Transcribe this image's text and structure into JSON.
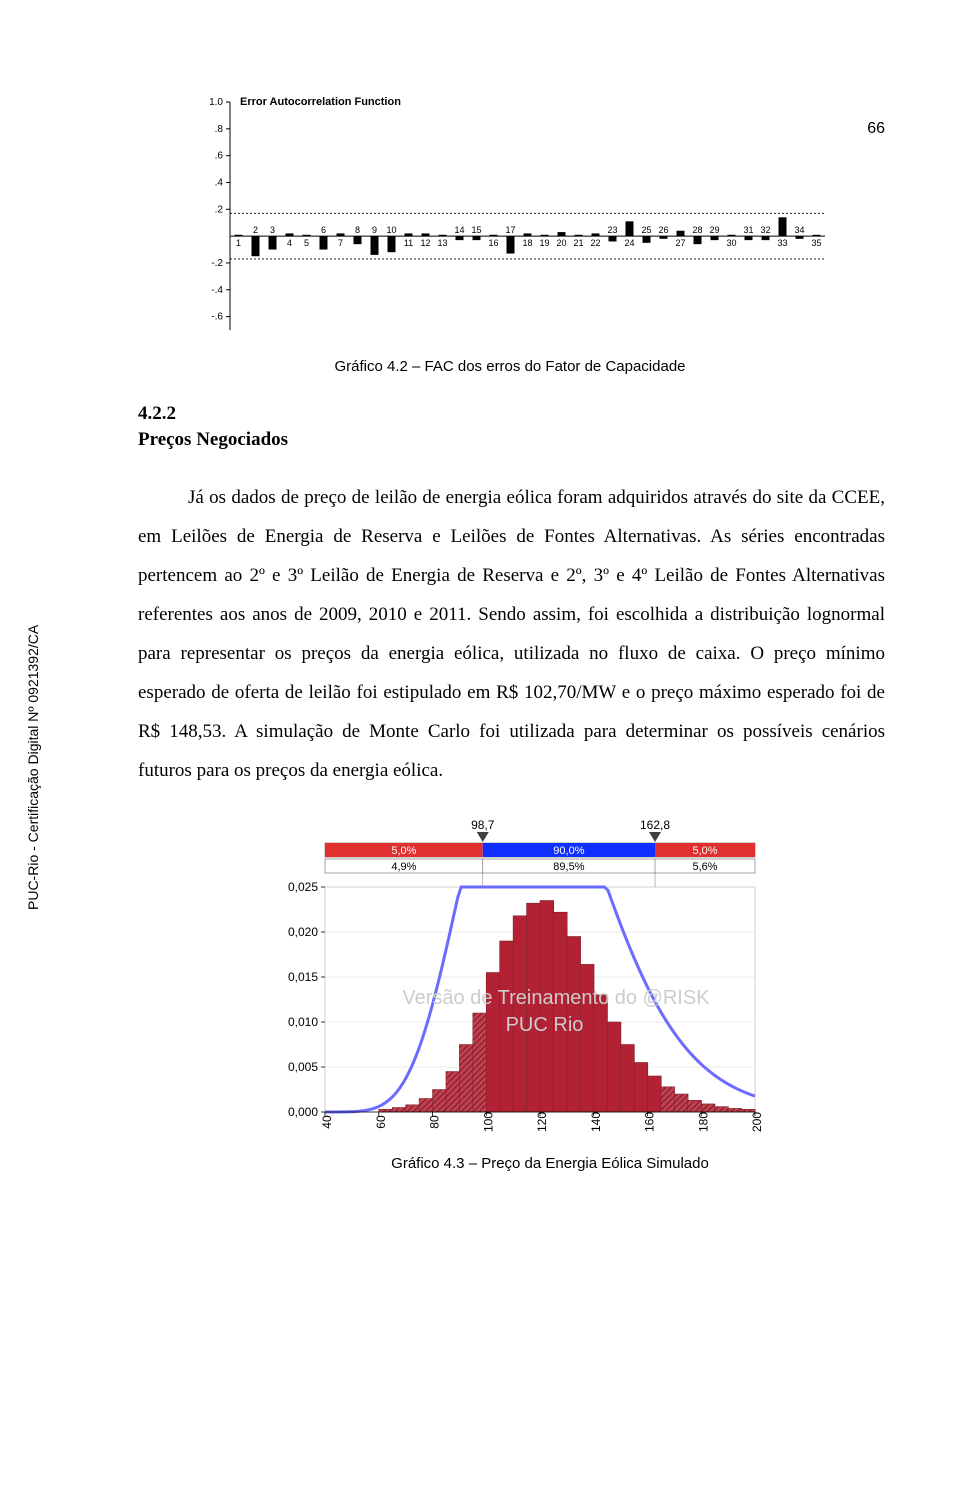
{
  "page_number": "66",
  "sidebar": "PUC-Rio - Certificação Digital Nº 0921392/CA",
  "caption1": "Gráfico 4.2 – FAC dos erros do Fator de Capacidade",
  "section_num": "4.2.2",
  "section_title": "Preços Negociados",
  "paragraph": "Já os dados de preço de leilão de energia eólica foram adquiridos através do site da CCEE, em Leilões de Energia de Reserva e Leilões de Fontes Alternativas. As séries encontradas pertencem ao 2º e 3º Leilão de Energia de Reserva e 2º, 3º e 4º Leilão de Fontes Alternativas referentes aos anos de 2009, 2010 e 2011. Sendo assim, foi escolhida a distribuição lognormal para representar os preços da energia eólica, utilizada no fluxo de caixa. O preço mínimo esperado de oferta de leilão foi estipulado em R$ 102,70/MW e o preço máximo esperado foi de R$ 148,53. A simulação de Monte Carlo foi utilizada para determinar os possíveis cenários futuros para os preços da energia eólica.",
  "caption2": "Gráfico 4.3 – Preço da Energia Eólica Simulado",
  "acf": {
    "title": "Error Autocorrelation Function",
    "y_ticks": [
      -0.6,
      -0.4,
      -0.2,
      0.2,
      0.4,
      0.6,
      0.8,
      1.0
    ],
    "ci": 0.17,
    "values": [
      {
        "lag": 1,
        "v": 0.01
      },
      {
        "lag": 2,
        "v": -0.15
      },
      {
        "lag": 3,
        "v": -0.1
      },
      {
        "lag": 4,
        "v": 0.02
      },
      {
        "lag": 5,
        "v": 0.01
      },
      {
        "lag": 6,
        "v": -0.1
      },
      {
        "lag": 7,
        "v": 0.02
      },
      {
        "lag": 8,
        "v": -0.06
      },
      {
        "lag": 9,
        "v": -0.14
      },
      {
        "lag": 10,
        "v": -0.12
      },
      {
        "lag": 11,
        "v": 0.02
      },
      {
        "lag": 12,
        "v": 0.02
      },
      {
        "lag": 13,
        "v": 0.01
      },
      {
        "lag": 14,
        "v": -0.03
      },
      {
        "lag": 15,
        "v": -0.03
      },
      {
        "lag": 16,
        "v": 0.01
      },
      {
        "lag": 17,
        "v": -0.13
      },
      {
        "lag": 18,
        "v": 0.02
      },
      {
        "lag": 19,
        "v": 0.01
      },
      {
        "lag": 20,
        "v": 0.03
      },
      {
        "lag": 21,
        "v": 0.01
      },
      {
        "lag": 22,
        "v": 0.02
      },
      {
        "lag": 23,
        "v": -0.04
      },
      {
        "lag": 24,
        "v": 0.11
      },
      {
        "lag": 25,
        "v": -0.05
      },
      {
        "lag": 26,
        "v": -0.02
      },
      {
        "lag": 27,
        "v": 0.04
      },
      {
        "lag": 28,
        "v": -0.06
      },
      {
        "lag": 29,
        "v": -0.03
      },
      {
        "lag": 30,
        "v": 0.01
      },
      {
        "lag": 31,
        "v": -0.03
      },
      {
        "lag": 32,
        "v": -0.03
      },
      {
        "lag": 33,
        "v": 0.14
      },
      {
        "lag": 34,
        "v": -0.02
      },
      {
        "lag": 35,
        "v": 0.01
      }
    ]
  },
  "density": {
    "marker_left": "98,7",
    "marker_right": "162,8",
    "row1": {
      "l": "5,0%",
      "c": "90,0%",
      "r": "5,0%"
    },
    "row2": {
      "l": "4,9%",
      "c": "89,5%",
      "r": "5,6%"
    },
    "watermark1": "Versão de Treinamento do @RISK",
    "watermark2": "PUC Rio",
    "x_ticks": [
      40,
      60,
      80,
      100,
      120,
      140,
      160,
      180,
      200
    ],
    "y_ticks": [
      "0,000",
      "0,005",
      "0,010",
      "0,015",
      "0,020",
      "0,025"
    ],
    "bars": [
      {
        "x": 60,
        "h": 0.0003
      },
      {
        "x": 65,
        "h": 0.0005
      },
      {
        "x": 70,
        "h": 0.0008
      },
      {
        "x": 75,
        "h": 0.0015
      },
      {
        "x": 80,
        "h": 0.0025
      },
      {
        "x": 85,
        "h": 0.0045
      },
      {
        "x": 90,
        "h": 0.0075
      },
      {
        "x": 95,
        "h": 0.011
      },
      {
        "x": 100,
        "h": 0.0155
      },
      {
        "x": 105,
        "h": 0.019
      },
      {
        "x": 110,
        "h": 0.0218
      },
      {
        "x": 115,
        "h": 0.0232
      },
      {
        "x": 120,
        "h": 0.0235
      },
      {
        "x": 125,
        "h": 0.0222
      },
      {
        "x": 130,
        "h": 0.0195
      },
      {
        "x": 135,
        "h": 0.0164
      },
      {
        "x": 140,
        "h": 0.013
      },
      {
        "x": 145,
        "h": 0.01
      },
      {
        "x": 150,
        "h": 0.0075
      },
      {
        "x": 155,
        "h": 0.0055
      },
      {
        "x": 160,
        "h": 0.004
      },
      {
        "x": 165,
        "h": 0.0028
      },
      {
        "x": 170,
        "h": 0.002
      },
      {
        "x": 175,
        "h": 0.0013
      },
      {
        "x": 180,
        "h": 0.0009
      },
      {
        "x": 185,
        "h": 0.0006
      },
      {
        "x": 190,
        "h": 0.0004
      },
      {
        "x": 195,
        "h": 0.0003
      }
    ],
    "marker_left_x": 98.7,
    "marker_right_x": 162.8,
    "xlim": [
      40,
      200
    ],
    "ylim": [
      0,
      0.025
    ]
  }
}
